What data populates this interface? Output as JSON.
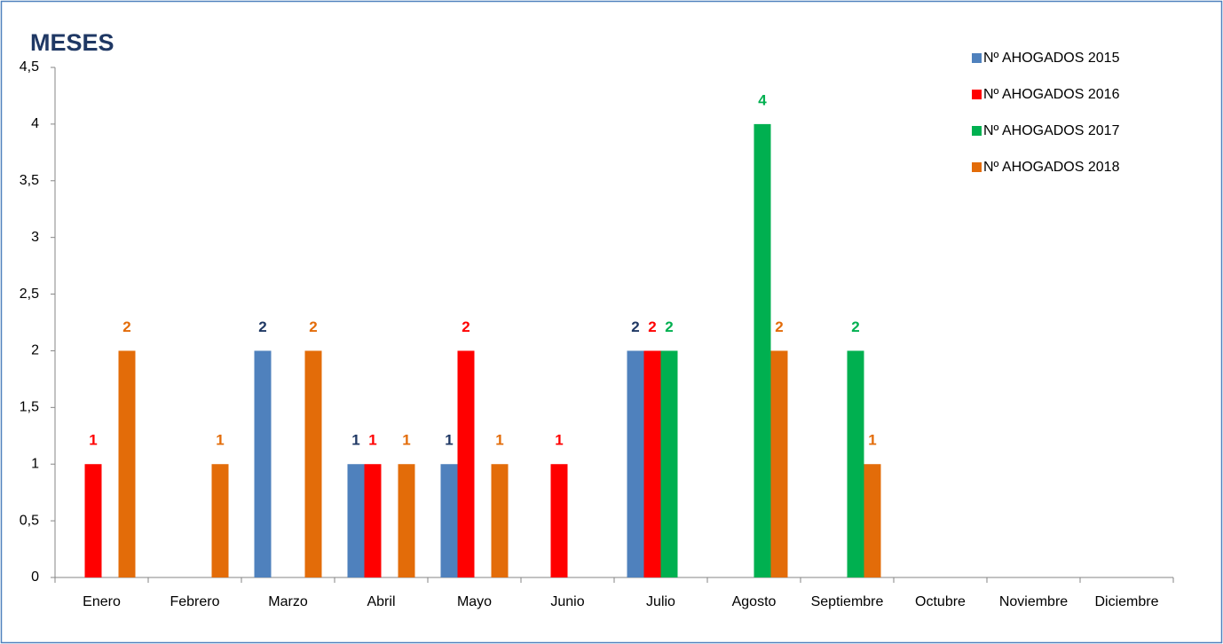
{
  "chart_data": {
    "type": "bar",
    "title": "MESES",
    "categories": [
      "Enero",
      "Febrero",
      "Marzo",
      "Abril",
      "Mayo",
      "Junio",
      "Julio",
      "Agosto",
      "Septiembre",
      "Octubre",
      "Noviembre",
      "Diciembre"
    ],
    "series": [
      {
        "name": "Nº AHOGADOS 2015",
        "color": "#4f81bd",
        "label_color": "#1f3864",
        "values": [
          null,
          null,
          2,
          1,
          1,
          null,
          2,
          null,
          null,
          null,
          null,
          null
        ]
      },
      {
        "name": "Nº AHOGADOS 2016",
        "color": "#ff0000",
        "label_color": "#ff0000",
        "values": [
          1,
          null,
          null,
          1,
          2,
          1,
          2,
          null,
          null,
          null,
          null,
          null
        ]
      },
      {
        "name": "Nº AHOGADOS 2017",
        "color": "#00b050",
        "label_color": "#00b050",
        "values": [
          null,
          null,
          null,
          null,
          null,
          null,
          2,
          4,
          2,
          null,
          null,
          null
        ]
      },
      {
        "name": "Nº AHOGADOS 2018",
        "color": "#e36c09",
        "label_color": "#e36c09",
        "values": [
          2,
          1,
          2,
          1,
          1,
          null,
          null,
          2,
          1,
          null,
          null,
          null
        ]
      }
    ],
    "ylim": [
      0,
      4.5
    ],
    "yticks": [
      0,
      {
        "value": 0.5,
        "label": "0,5"
      },
      1,
      {
        "value": 1.5,
        "label": "1,5"
      },
      2,
      {
        "value": 2.5,
        "label": "2,5"
      },
      3,
      {
        "value": 3.5,
        "label": "3,5"
      },
      4,
      {
        "value": 4.5,
        "label": "4,5"
      }
    ],
    "grid": false,
    "legend": "top-right"
  }
}
